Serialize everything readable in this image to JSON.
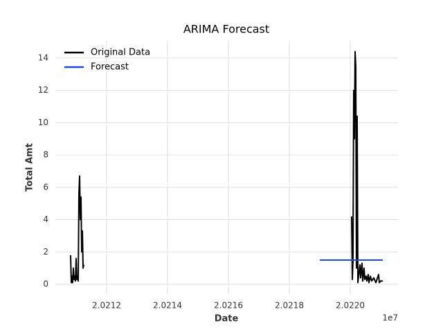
{
  "chart_data": {
    "type": "line",
    "title": "ARIMA Forecast",
    "xlabel": "Date",
    "ylabel": "Total Amt",
    "x_offset_label": "1e7",
    "series": [
      {
        "name": "Original Data",
        "color": "#000000",
        "x": [
          20210818,
          20210841,
          20210864,
          20210886,
          20210909,
          20210932,
          20210955,
          20210977,
          20211000,
          20211023,
          20211045,
          20211068,
          20211091,
          20211114,
          20211136,
          20211159,
          20211182,
          20211205,
          20211227,
          20211250,
          20215000,
          20220045,
          20220068,
          20220090,
          20220113,
          20220136,
          20220159,
          20220181,
          20220204,
          20220227,
          20220250,
          20220272,
          20220318,
          20220340,
          20220386,
          20220409,
          20220454,
          20220477,
          20220522,
          20220545,
          20220590,
          20220613,
          20220659,
          20220704,
          20220772,
          20220840,
          20220931,
          20220954,
          20221000,
          20221068
        ],
        "values": [
          1.8,
          0.1,
          0.5,
          0.1,
          1.0,
          0.3,
          0.5,
          0.2,
          1.6,
          0.3,
          0.5,
          0.2,
          5.6,
          6.7,
          4.0,
          5.4,
          2.0,
          3.3,
          1.0,
          1.2,
          null,
          4.2,
          0.3,
          1.5,
          12.0,
          9.0,
          14.4,
          13.5,
          1.0,
          10.4,
          0.1,
          0.5,
          1.2,
          0.4,
          1.3,
          0.2,
          1.0,
          0.3,
          0.5,
          0.2,
          0.6,
          0.1,
          0.5,
          0.2,
          0.4,
          0.1,
          0.6,
          0.1,
          0.2,
          0.2
        ]
      },
      {
        "name": "Forecast",
        "color": "#1a47e6",
        "x": [
          20219000,
          20220000,
          20221068
        ],
        "values": [
          1.5,
          1.5,
          1.5
        ]
      }
    ],
    "xlim": [
      20210318,
      20221568
    ],
    "xticks": [
      {
        "value": 20212000,
        "label": "2.0212"
      },
      {
        "value": 20214000,
        "label": "2.0214"
      },
      {
        "value": 20216000,
        "label": "2.0216"
      },
      {
        "value": 20218000,
        "label": "2.0218"
      },
      {
        "value": 20220000,
        "label": "2.0220"
      }
    ],
    "ylim": [
      -0.6,
      15.11
    ],
    "yticks": [
      0,
      2,
      4,
      6,
      8,
      10,
      12,
      14
    ],
    "grid": true,
    "legend": "upper left"
  }
}
